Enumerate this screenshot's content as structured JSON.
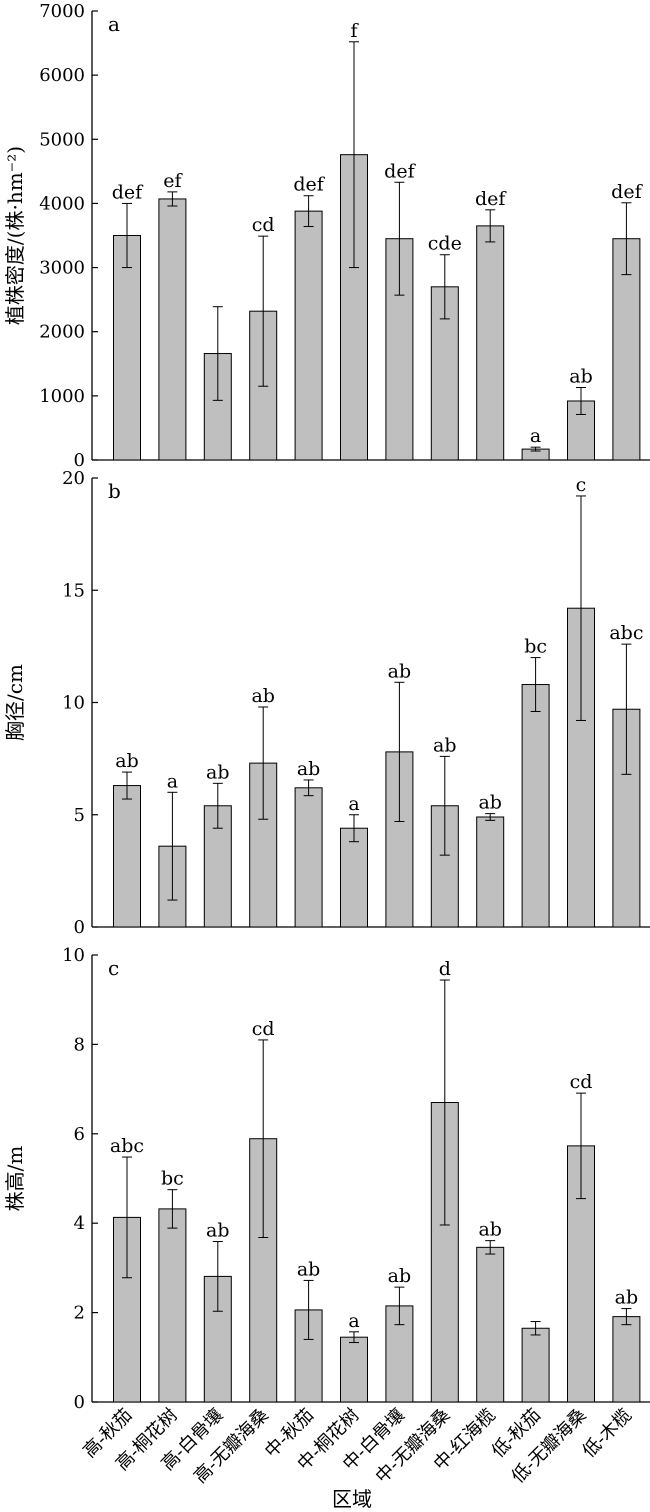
{
  "chart_data": [
    {
      "type": "bar",
      "panel_label": "a",
      "ylabel": "植株密度/(株·hm⁻²)",
      "ylim": [
        0,
        7000
      ],
      "yticks": [
        0,
        1000,
        2000,
        3000,
        4000,
        5000,
        6000,
        7000
      ],
      "categories": [
        "高-秋茄",
        "高-桐花树",
        "高-白骨壤",
        "高-无瓣海桑",
        "中-秋茄",
        "中-桐花树",
        "中-白骨壤",
        "中-无瓣海桑",
        "中-红海榄",
        "低-秋茄",
        "低-无瓣海桑",
        "低-木榄"
      ],
      "values": [
        3500,
        4070,
        1660,
        2320,
        3880,
        4760,
        3450,
        2700,
        3650,
        170,
        920,
        3450
      ],
      "error": [
        500,
        110,
        730,
        1170,
        240,
        1760,
        880,
        500,
        250,
        30,
        210,
        560
      ],
      "significance": [
        "def",
        "ef",
        "",
        "cd",
        "def",
        "f",
        "def",
        "cde",
        "def",
        "a",
        "ab",
        "def"
      ]
    },
    {
      "type": "bar",
      "panel_label": "b",
      "ylabel": "胸径/cm",
      "ylim": [
        0,
        20
      ],
      "yticks": [
        0,
        5,
        10,
        15,
        20
      ],
      "categories": [
        "高-秋茄",
        "高-桐花树",
        "高-白骨壤",
        "高-无瓣海桑",
        "中-秋茄",
        "中-桐花树",
        "中-白骨壤",
        "中-无瓣海桑",
        "中-红海榄",
        "低-秋茄",
        "低-无瓣海桑",
        "低-木榄"
      ],
      "values": [
        6.3,
        3.6,
        5.4,
        7.3,
        6.2,
        4.4,
        7.8,
        5.4,
        4.9,
        10.8,
        14.2,
        9.7
      ],
      "error": [
        0.6,
        2.4,
        1.0,
        2.5,
        0.35,
        0.6,
        3.1,
        2.2,
        0.15,
        1.2,
        5.0,
        2.9
      ],
      "significance": [
        "ab",
        "a",
        "ab",
        "ab",
        "ab",
        "a",
        "ab",
        "ab",
        "ab",
        "bc",
        "c",
        "abc"
      ]
    },
    {
      "type": "bar",
      "panel_label": "c",
      "ylabel": "株高/m",
      "xlabel": "区域",
      "ylim": [
        0,
        10
      ],
      "yticks": [
        0,
        2,
        4,
        6,
        8,
        10
      ],
      "categories": [
        "高-秋茄",
        "高-桐花树",
        "高-白骨壤",
        "高-无瓣海桑",
        "中-秋茄",
        "中-桐花树",
        "中-白骨壤",
        "中-无瓣海桑",
        "中-红海榄",
        "低-秋茄",
        "低-无瓣海桑",
        "低-木榄"
      ],
      "values": [
        4.13,
        4.32,
        2.81,
        5.89,
        2.06,
        1.45,
        2.15,
        6.7,
        3.46,
        1.65,
        5.73,
        1.91
      ],
      "error": [
        1.35,
        0.43,
        0.78,
        2.21,
        0.66,
        0.12,
        0.42,
        2.74,
        0.15,
        0.15,
        1.18,
        0.18
      ],
      "significance": [
        "abc",
        "bc",
        "ab",
        "cd",
        "ab",
        "a",
        "ab",
        "d",
        "ab",
        "",
        "cd",
        "ab"
      ]
    }
  ]
}
